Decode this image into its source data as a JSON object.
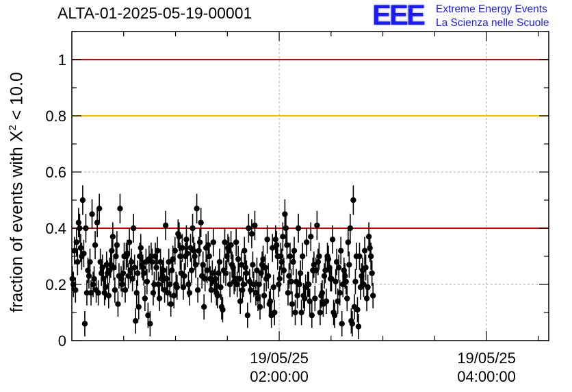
{
  "title": "ALTA-01-2025-05-19-00001",
  "logo": {
    "mark": "EEE",
    "line1": "Extreme Energy Events",
    "line2": "La Scienza nelle Scuole",
    "color": "#1a1aff"
  },
  "chart_data": {
    "type": "scatter",
    "title": "ALTA-01-2025-05-19-00001",
    "ylabel_prefix": "fraction of events with X",
    "ylabel_sup": "2",
    "ylabel_suffix": " < 10.0",
    "xlabel": "",
    "xlim_hours": [
      0.0,
      4.6
    ],
    "ylim": [
      0,
      1.1
    ],
    "yticks": [
      0,
      0.2,
      0.4,
      0.6,
      0.8,
      1
    ],
    "ytick_labels": [
      "0",
      "0.2",
      "0.4",
      "0.6",
      "0.8",
      "1"
    ],
    "xticks": [
      {
        "hours": 2.0,
        "date": "19/05/25",
        "time": "02:00:00"
      },
      {
        "hours": 4.0,
        "date": "19/05/25",
        "time": "04:00:00"
      }
    ],
    "grid": true,
    "reference_lines": [
      {
        "y": 1.0,
        "color": "#dd0000"
      },
      {
        "y": 0.8,
        "color": "#ffbb00"
      },
      {
        "y": 0.4,
        "color": "#dd0000"
      }
    ],
    "series": [
      {
        "name": "fraction",
        "color": "#000000",
        "x_start_hours": 0.0,
        "x_step_hours": 0.01,
        "values": [
          0.22,
          0.2,
          0.32,
          0.18,
          0.35,
          0.28,
          0.42,
          0.4,
          0.33,
          0.3,
          0.5,
          0.31,
          0.06,
          0.4,
          0.17,
          0.25,
          0.23,
          0.28,
          0.17,
          0.45,
          0.2,
          0.22,
          0.34,
          0.18,
          0.42,
          0.17,
          0.47,
          0.28,
          0.24,
          0.26,
          0.22,
          0.17,
          0.19,
          0.27,
          0.24,
          0.16,
          0.25,
          0.27,
          0.32,
          0.37,
          0.26,
          0.18,
          0.3,
          0.34,
          0.13,
          0.23,
          0.47,
          0.22,
          0.2,
          0.24,
          0.3,
          0.18,
          0.3,
          0.31,
          0.23,
          0.35,
          0.25,
          0.28,
          0.22,
          0.4,
          0.26,
          0.07,
          0.17,
          0.24,
          0.12,
          0.3,
          0.33,
          0.27,
          0.26,
          0.24,
          0.15,
          0.28,
          0.21,
          0.09,
          0.29,
          0.06,
          0.3,
          0.28,
          0.17,
          0.2,
          0.3,
          0.26,
          0.32,
          0.2,
          0.15,
          0.28,
          0.22,
          0.23,
          0.25,
          0.18,
          0.41,
          0.22,
          0.17,
          0.28,
          0.2,
          0.13,
          0.25,
          0.29,
          0.16,
          0.32,
          0.2,
          0.19,
          0.38,
          0.37,
          0.3,
          0.24,
          0.33,
          0.19,
          0.23,
          0.3,
          0.36,
          0.31,
          0.2,
          0.17,
          0.33,
          0.25,
          0.4,
          0.32,
          0.3,
          0.27,
          0.47,
          0.18,
          0.32,
          0.35,
          0.42,
          0.23,
          0.27,
          0.12,
          0.22,
          0.33,
          0.25,
          0.34,
          0.3,
          0.22,
          0.18,
          0.24,
          0.35,
          0.21,
          0.22,
          0.17,
          0.16,
          0.24,
          0.28,
          0.19,
          0.12,
          0.11,
          0.25,
          0.35,
          0.24,
          0.3,
          0.33,
          0.32,
          0.2,
          0.34,
          0.27,
          0.26,
          0.21,
          0.22,
          0.35,
          0.2,
          0.29,
          0.22,
          0.14,
          0.27,
          0.18,
          0.2,
          0.32,
          0.26,
          0.24,
          0.09,
          0.4,
          0.21,
          0.18,
          0.38,
          0.27,
          0.2,
          0.41,
          0.17,
          0.25,
          0.15,
          0.2,
          0.12,
          0.24,
          0.27,
          0.29,
          0.16,
          0.26,
          0.22,
          0.36,
          0.23,
          0.13,
          0.14,
          0.09,
          0.33,
          0.19,
          0.1,
          0.36,
          0.34,
          0.3,
          0.2,
          0.22,
          0.3,
          0.28,
          0.37,
          0.25,
          0.45,
          0.4,
          0.34,
          0.17,
          0.23,
          0.3,
          0.21,
          0.13,
          0.28,
          0.32,
          0.1,
          0.21,
          0.16,
          0.4,
          0.2,
          0.24,
          0.1,
          0.3,
          0.16,
          0.15,
          0.19,
          0.35,
          0.2,
          0.2,
          0.14,
          0.37,
          0.09,
          0.25,
          0.27,
          0.15,
          0.25,
          0.41,
          0.28,
          0.3,
          0.1,
          0.16,
          0.17,
          0.13,
          0.23,
          0.25,
          0.14,
          0.3,
          0.29,
          0.26,
          0.22,
          0.22,
          0.36,
          0.1,
          0.09,
          0.21,
          0.28,
          0.14,
          0.26,
          0.17,
          0.32,
          0.06,
          0.2,
          0.25,
          0.23,
          0.21,
          0.15,
          0.35,
          0.27,
          0.4,
          0.07,
          0.06,
          0.5,
          0.12,
          0.21,
          0.3,
          0.11,
          0.05,
          0.3,
          0.19,
          0.23,
          0.25,
          0.2,
          0.32,
          0.26,
          0.15,
          0.19,
          0.37,
          0.33,
          0.3,
          0.24,
          0.16
        ]
      }
    ]
  }
}
